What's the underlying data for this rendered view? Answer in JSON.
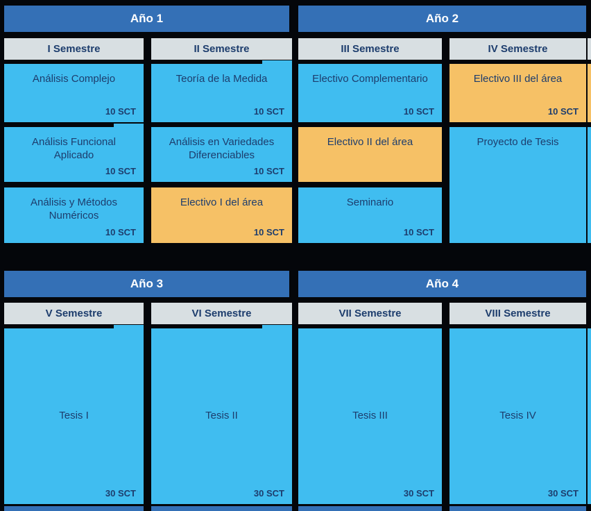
{
  "palette": {
    "background": "#04060a",
    "year_header_blue": "#3470b6",
    "semester_header_gray": "#d8dfe2",
    "card_cyan": "#40bdf0",
    "card_orange": "#f6c166",
    "navy_text": "#1d3d6d",
    "year_text": "#ffffff"
  },
  "years": [
    {
      "label": "Año 1"
    },
    {
      "label": "Año 2"
    },
    {
      "label": "Año 3"
    },
    {
      "label": "Año 4"
    }
  ],
  "semesters": [
    {
      "label": "I Semestre"
    },
    {
      "label": "II Semestre"
    },
    {
      "label": "III Semestre"
    },
    {
      "label": "IV Semestre"
    },
    {
      "label": "V Semestre"
    },
    {
      "label": "VI Semestre"
    },
    {
      "label": "VII Semestre"
    },
    {
      "label": "VIII Semestre"
    }
  ],
  "cards": [
    {
      "title": "Análisis Complejo",
      "credits": "10 SCT",
      "color": "cyan",
      "col": 0,
      "row": "r1",
      "tab": false
    },
    {
      "title": "Análisis Funcional Aplicado",
      "credits": "10 SCT",
      "color": "cyan",
      "col": 0,
      "row": "r2",
      "tab": true
    },
    {
      "title": "Análisis y Métodos Numéricos",
      "credits": "10 SCT",
      "color": "cyan",
      "col": 0,
      "row": "r3",
      "tab": false
    },
    {
      "title": "Teoría de la Medida",
      "credits": "10 SCT",
      "color": "cyan",
      "col": 1,
      "row": "r1",
      "tab": true
    },
    {
      "title": "Análisis en Variedades Diferenciables",
      "credits": "10 SCT",
      "color": "cyan",
      "col": 1,
      "row": "r2",
      "tab": false
    },
    {
      "title": "Electivo I del área",
      "credits": "10 SCT",
      "color": "orange",
      "col": 1,
      "row": "r3",
      "tab": false
    },
    {
      "title": "Electivo Complementario",
      "credits": "10 SCT",
      "color": "cyan",
      "col": 2,
      "row": "r1",
      "tab": false
    },
    {
      "title": "Electivo II del área",
      "credits": null,
      "color": "orange",
      "col": 2,
      "row": "r2",
      "tab": false
    },
    {
      "title": "Seminario",
      "credits": "10 SCT",
      "color": "cyan",
      "col": 2,
      "row": "r3",
      "tab": false
    },
    {
      "title": "Electivo III del área",
      "credits": "10 SCT",
      "color": "orange",
      "col": 3,
      "row": "r1",
      "tab": false
    },
    {
      "title": "Proyecto de Tesis",
      "credits": null,
      "color": "cyan",
      "col": 3,
      "row": "tall",
      "tab": false
    },
    {
      "title": "Tesis I",
      "credits": "30 SCT",
      "color": "cyan",
      "col": 0,
      "row": "tesis",
      "tab": true
    },
    {
      "title": "Tesis II",
      "credits": "30 SCT",
      "color": "cyan",
      "col": 1,
      "row": "tesis",
      "tab": true
    },
    {
      "title": "Tesis III",
      "credits": "30 SCT",
      "color": "cyan",
      "col": 2,
      "row": "tesis",
      "tab": false
    },
    {
      "title": "Tesis IV",
      "credits": "30 SCT",
      "color": "cyan",
      "col": 3,
      "row": "tesis",
      "tab": false
    }
  ]
}
